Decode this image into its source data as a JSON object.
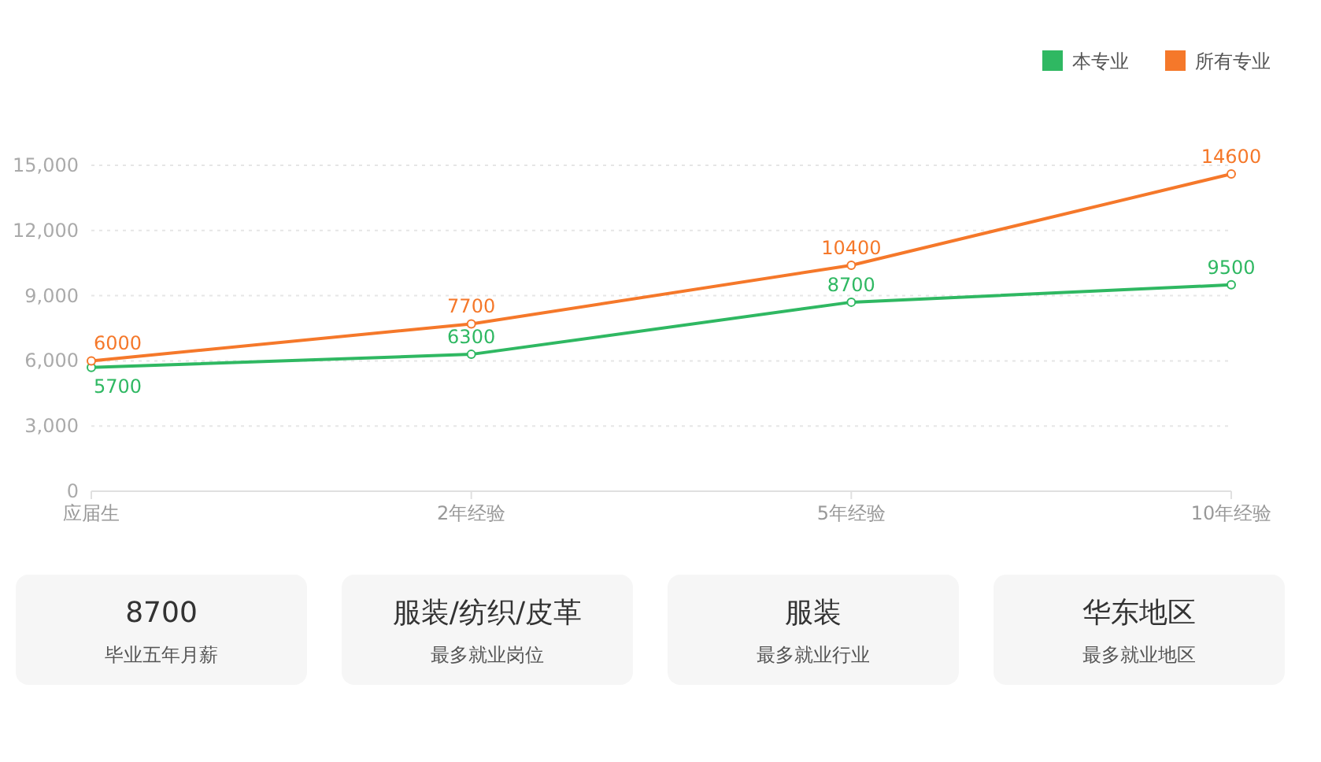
{
  "chart_data": [
    {
      "type": "line",
      "categories": [
        "应届生",
        "2年经验",
        "5年经验",
        "10年经验"
      ],
      "series": [
        {
          "name": "本专业",
          "color": "#2fb862",
          "values": [
            5700,
            6300,
            8700,
            9500
          ]
        },
        {
          "name": "所有专业",
          "color": "#f5782a",
          "values": [
            6000,
            7700,
            10400,
            14600
          ]
        }
      ],
      "ylim": [
        0,
        15000
      ],
      "yticks": [
        0,
        {
          "value": 3000,
          "label": "3,000"
        },
        {
          "value": 6000,
          "label": "6,000"
        },
        {
          "value": 9000,
          "label": "9,000"
        },
        {
          "value": 12000,
          "label": "12,000"
        },
        {
          "value": 15000,
          "label": "15,000"
        }
      ],
      "grid": "y",
      "legend": "top right",
      "marker": "circle",
      "data_labels": true
    },
    {
      "type": "other",
      "annotations": [
        "8700",
        "毕业五年月薪",
        "服装/纺织/皮革",
        "最多就业岗位",
        "服装",
        "最多就业行业",
        "华东地区",
        "最多就业地区"
      ]
    }
  ]
}
